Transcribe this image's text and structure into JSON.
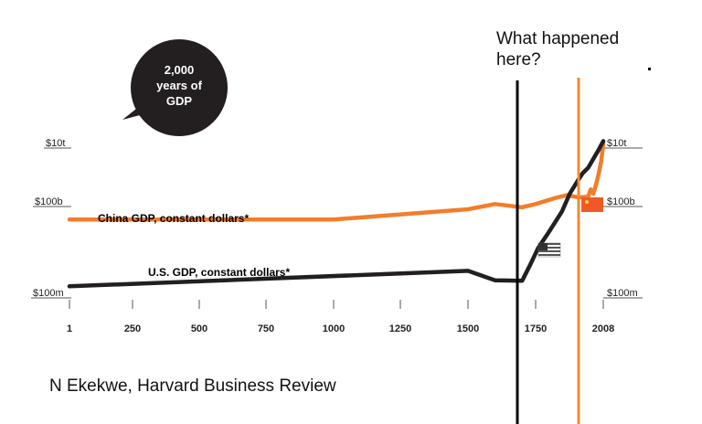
{
  "chart_data": {
    "type": "line",
    "title": "2,000 years of GDP",
    "title_lines": [
      "2,000",
      "years of",
      "GDP"
    ],
    "y_scale": "log",
    "y_ticks": [
      {
        "label": "$10t",
        "value": 10000000000000
      },
      {
        "label": "$100b",
        "value": 100000000000
      },
      {
        "label": "$100m",
        "value": 100000000
      }
    ],
    "x_ticks": [
      1,
      250,
      500,
      750,
      1000,
      1250,
      1500,
      1750,
      2008
    ],
    "x_tick_labels": [
      "1",
      "250",
      "500",
      "750",
      "1000",
      "1250",
      "1500",
      "1750",
      "2008"
    ],
    "series": [
      {
        "name": "China GDP, constant dollars*",
        "color": "#f27d2b",
        "points": [
          [
            1,
            27000000000
          ],
          [
            1000,
            27000000000
          ],
          [
            1500,
            60000000000
          ],
          [
            1600,
            90000000000
          ],
          [
            1700,
            70000000000
          ],
          [
            1750,
            90000000000
          ],
          [
            1820,
            140000000000
          ],
          [
            1870,
            180000000000
          ],
          [
            1913,
            150000000000
          ],
          [
            1950,
            160000000000
          ],
          [
            1960,
            280000000000
          ],
          [
            1970,
            200000000000
          ],
          [
            1980,
            400000000000
          ],
          [
            1990,
            900000000000
          ],
          [
            2000,
            2500000000000
          ],
          [
            2008,
            10000000000000
          ]
        ]
      },
      {
        "name": "U.S. GDP, constant dollars*",
        "color": "#231f20",
        "points": [
          [
            1,
            150000000
          ],
          [
            1500,
            500000000
          ],
          [
            1600,
            240000000
          ],
          [
            1700,
            230000000
          ],
          [
            1730,
            800000000
          ],
          [
            1760,
            3000000000
          ],
          [
            1800,
            10000000000
          ],
          [
            1850,
            50000000000
          ],
          [
            1880,
            200000000000
          ],
          [
            1913,
            600000000000
          ],
          [
            1930,
            1000000000000
          ],
          [
            1950,
            1500000000000
          ],
          [
            1970,
            3000000000000
          ],
          [
            1990,
            6000000000000
          ],
          [
            2008,
            12000000000000
          ]
        ]
      }
    ],
    "annotations": [
      "What happened here?",
      "N Ekekwe, Harvard Business Review"
    ]
  },
  "colors": {
    "china": "#f27d2b",
    "us": "#231f20",
    "orange_marker": "#f28a2e",
    "black_marker": "#000000"
  },
  "annotation": {
    "question": "What happened here?"
  },
  "source": "N Ekekwe, Harvard Business Review",
  "flags": {
    "us": "us-flag-icon",
    "china": "china-flag-icon"
  }
}
